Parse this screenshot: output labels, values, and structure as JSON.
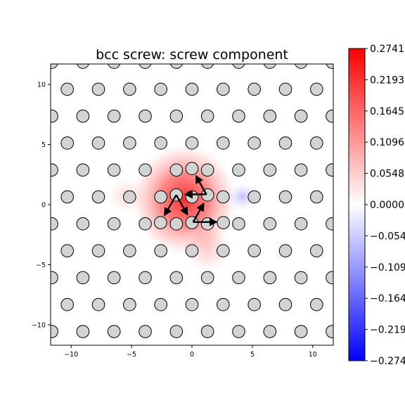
{
  "chart_data": {
    "type": "scatter",
    "title": "bcc screw: screw component",
    "xlabel": "",
    "ylabel": "",
    "xlim": [
      -11.7,
      11.7
    ],
    "ylim": [
      -11.7,
      11.7
    ],
    "xticks": [
      -10,
      -5,
      0,
      5,
      10
    ],
    "yticks": [
      -10,
      -5,
      0,
      5,
      10
    ],
    "grid": false,
    "lattice": {
      "row_spacing": 2.24,
      "col_spacing": 2.58,
      "row_y_max": 9.6,
      "row_y_min": -10.6,
      "description": "atoms marked as grey circles on a triangular lattice; field shown as red-white-blue heatmap"
    },
    "displaced_atoms": [
      {
        "x": -1.3,
        "y": 0.8
      },
      {
        "x": 1.3,
        "y": 0.8
      },
      {
        "x": 0.0,
        "y": 3.0
      },
      {
        "x": -2.6,
        "y": -1.5
      },
      {
        "x": 0.0,
        "y": -1.5
      },
      {
        "x": 2.6,
        "y": -1.5
      }
    ],
    "arrows": [
      {
        "x0": 1.2,
        "y0": 0.85,
        "x1": -0.5,
        "y1": 0.85
      },
      {
        "x0": 1.2,
        "y0": 0.85,
        "x1": 0.35,
        "y1": 2.35
      },
      {
        "x0": -1.3,
        "y0": 0.8,
        "x1": -2.25,
        "y1": -0.85
      },
      {
        "x0": -1.3,
        "y0": 0.8,
        "x1": -0.4,
        "y1": -0.8
      },
      {
        "x0": 0.1,
        "y0": -1.45,
        "x1": 2.0,
        "y1": -1.45
      },
      {
        "x0": 0.1,
        "y0": -1.45,
        "x1": 0.95,
        "y1": 0.05
      }
    ],
    "colorbar": {
      "min": -0.2741,
      "max": 0.2741,
      "ticks": [
        "0.2741",
        "0.2193",
        "0.1645",
        "0.1096",
        "0.0548",
        "0.0000",
        "−0.0548",
        "−0.1096",
        "−0.1645",
        "−0.2193",
        "−0.2741"
      ],
      "colors": {
        "high": "#ff0000",
        "mid": "#ffffff",
        "low": "#0000ff"
      }
    }
  }
}
